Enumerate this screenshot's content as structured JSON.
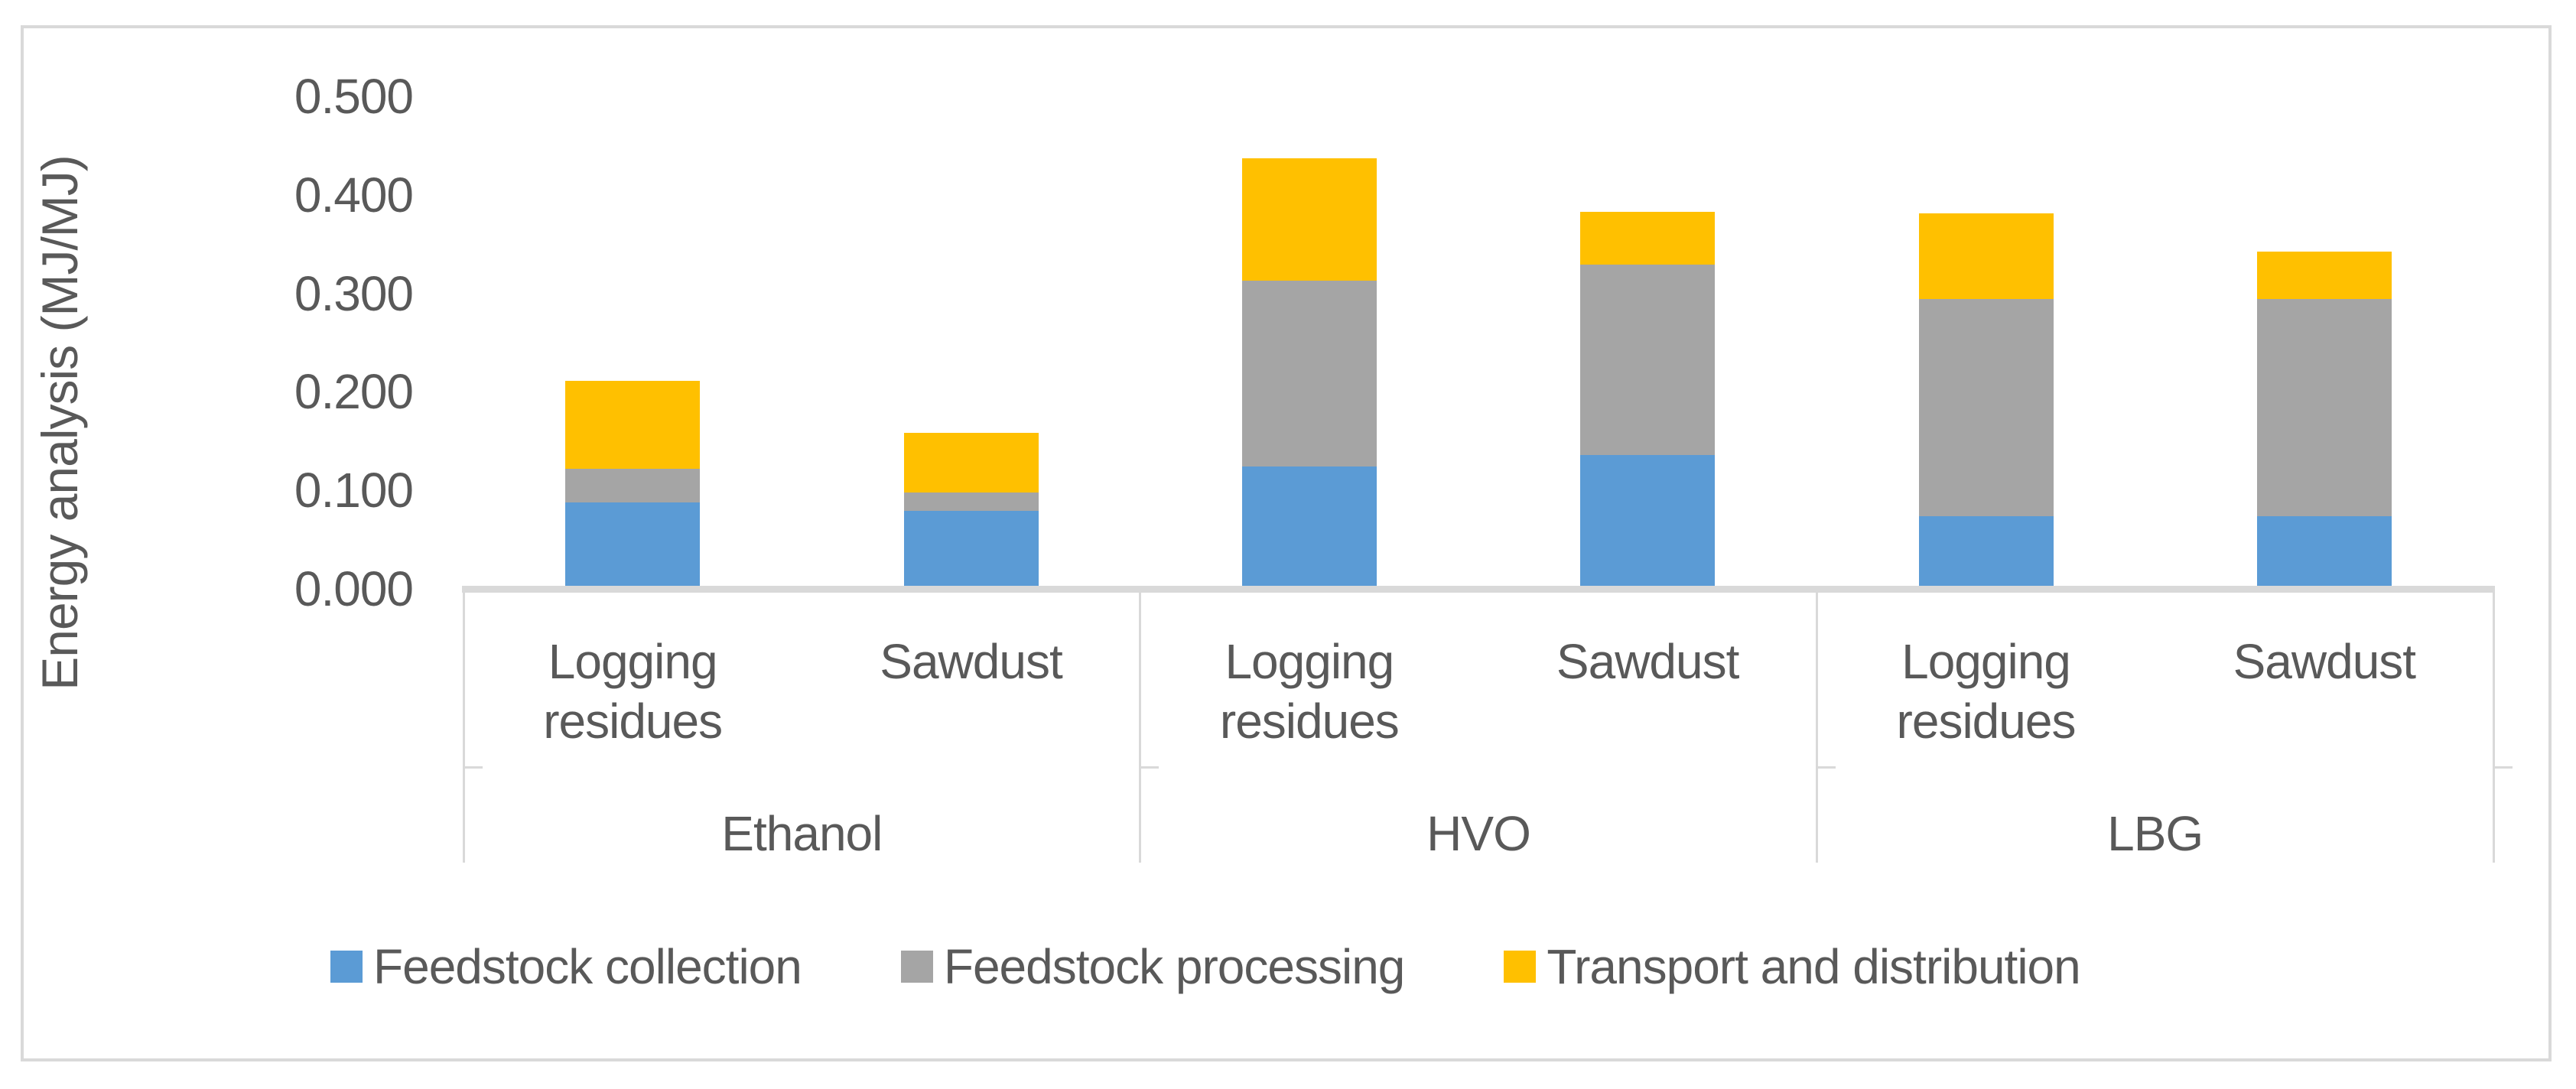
{
  "colors": {
    "feedstock_collection": "#5B9BD5",
    "feedstock_processing": "#A5A5A5",
    "transport_distribution": "#FFC000",
    "axis_gray": "#D9D9D9",
    "text_gray": "#595959",
    "background": "#FFFFFF"
  },
  "y_axis": {
    "title": "Energy analysis (MJ/MJ)",
    "tick_labels": [
      "0.500",
      "0.400",
      "0.300",
      "0.200",
      "0.100",
      "0.000"
    ],
    "tick_values": [
      0.5,
      0.4,
      0.3,
      0.2,
      0.1,
      0.0
    ]
  },
  "legend": [
    {
      "label": "Feedstock collection",
      "color": "#5B9BD5",
      "icon": "legend-swatch-blue"
    },
    {
      "label": "Feedstock processing",
      "color": "#A5A5A5",
      "icon": "legend-swatch-gray"
    },
    {
      "label": "Transport and distribution",
      "color": "#FFC000",
      "icon": "legend-swatch-yellow"
    }
  ],
  "chart_data": {
    "type": "bar",
    "stacked": true,
    "title": "",
    "xlabel": "",
    "ylabel": "Energy analysis (MJ/MJ)",
    "ylim": [
      0,
      0.5
    ],
    "ytick_step": 0.1,
    "grid": false,
    "legend_position": "bottom",
    "group_labels": [
      "Ethanol",
      "HVO",
      "LBG"
    ],
    "categories": [
      {
        "group": "Ethanol",
        "feedstock": "Logging residues"
      },
      {
        "group": "Ethanol",
        "feedstock": "Sawdust"
      },
      {
        "group": "HVO",
        "feedstock": "Logging residues"
      },
      {
        "group": "HVO",
        "feedstock": "Sawdust"
      },
      {
        "group": "LBG",
        "feedstock": "Logging residues"
      },
      {
        "group": "LBG",
        "feedstock": "Sawdust"
      }
    ],
    "category_labels": [
      "Logging residues",
      "Sawdust",
      "Logging residues",
      "Sawdust",
      "Logging residues",
      "Sawdust"
    ],
    "series": [
      {
        "name": "Feedstock collection",
        "color": "#5B9BD5",
        "values": [
          0.085,
          0.076,
          0.121,
          0.133,
          0.071,
          0.071
        ]
      },
      {
        "name": "Feedstock processing",
        "color": "#A5A5A5",
        "values": [
          0.034,
          0.019,
          0.189,
          0.193,
          0.22,
          0.22
        ]
      },
      {
        "name": "Transport and distribution",
        "color": "#FFC000",
        "values": [
          0.089,
          0.06,
          0.124,
          0.054,
          0.087,
          0.048
        ]
      }
    ],
    "stack_totals": [
      0.208,
      0.155,
      0.434,
      0.38,
      0.378,
      0.339
    ]
  }
}
